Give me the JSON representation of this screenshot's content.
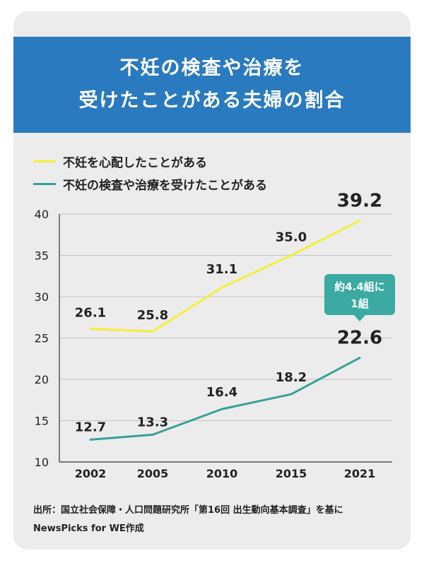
{
  "header": {
    "title_line1": "不妊の検査や治療を",
    "title_line2": "受けたことがある夫婦の割合"
  },
  "chart_data": {
    "type": "line",
    "categories": [
      "2002",
      "2005",
      "2010",
      "2015",
      "2021"
    ],
    "ylim": [
      10,
      40
    ],
    "yticks": [
      10,
      15,
      20,
      25,
      30,
      35,
      40
    ],
    "series": [
      {
        "name": "不妊を心配したことがある",
        "color": "#f5ee3a",
        "values": [
          26.1,
          25.8,
          31.1,
          35.0,
          39.2
        ],
        "labels": [
          "26.1",
          "25.8",
          "31.1",
          "35.0",
          "39.2"
        ]
      },
      {
        "name": "不妊の検査や治療を受けたことがある",
        "color": "#3aa095",
        "values": [
          12.7,
          13.3,
          16.4,
          18.2,
          22.6
        ],
        "labels": [
          "12.7",
          "13.3",
          "16.4",
          "18.2",
          "22.6"
        ]
      }
    ],
    "callout": {
      "line1": "約4.4組に",
      "line2": "1組",
      "color": "#3aaaa2"
    },
    "grid": true
  },
  "source": {
    "line1": "出所：国立社会保障・人口問題研究所「第16回  出生動向基本調査」を基に",
    "line2": "NewsPicks for WE作成"
  }
}
